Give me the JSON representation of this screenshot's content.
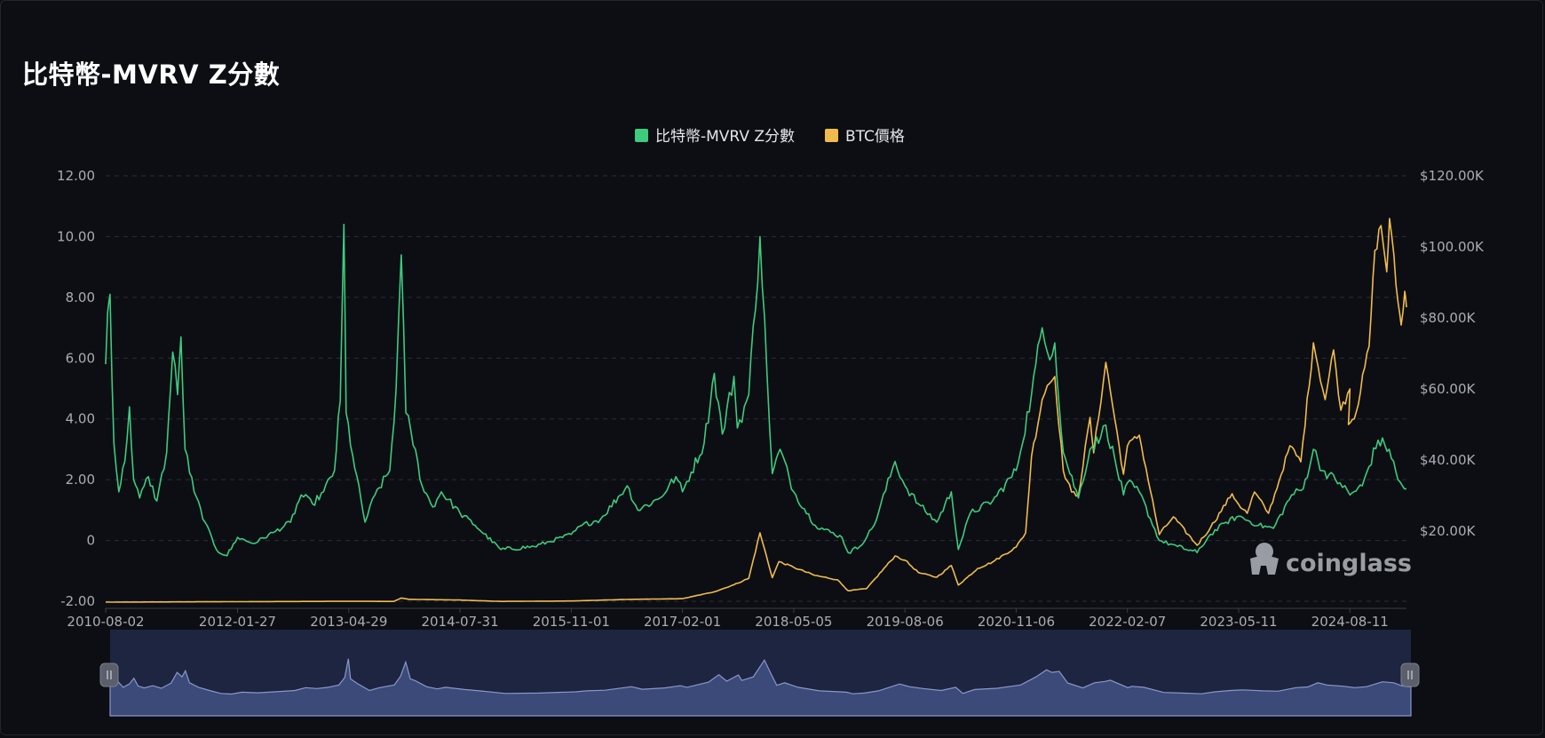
{
  "title": "比特幣-MVRV Z分數",
  "watermark": "coinglass",
  "legend": [
    {
      "label": "比特幣-MVRV Z分數",
      "color": "#3ecb7e"
    },
    {
      "label": "BTC價格",
      "color": "#f0bb4d"
    }
  ],
  "chart_data": {
    "type": "line",
    "title": "比特幣-MVRV Z分數",
    "x_labels": [
      "2010-08-02",
      "2012-01-27",
      "2013-04-29",
      "2014-07-31",
      "2015-11-01",
      "2017-02-01",
      "2018-05-05",
      "2019-08-06",
      "2020-11-06",
      "2022-02-07",
      "2023-05-11",
      "2024-08-11"
    ],
    "x_range": [
      "2010-08-02",
      "2025-04-01"
    ],
    "y_left": {
      "ticks": [
        "12.00",
        "10.00",
        "8.00",
        "6.00",
        "4.00",
        "2.00",
        "0",
        "-2.00"
      ],
      "range": [
        -2,
        12
      ]
    },
    "y_right": {
      "ticks": [
        "$120.00K",
        "$100.00K",
        "$80.00K",
        "$60.00K",
        "$40.00K",
        "$20.00K"
      ],
      "range": [
        0,
        120000
      ]
    },
    "grid": true,
    "legend_position": "top-center",
    "series": [
      {
        "name": "比特幣-MVRV Z分數",
        "axis": "left",
        "color": "#3ecb7e",
        "points": [
          [
            "2010-08-02",
            5.8
          ],
          [
            "2010-08-10",
            7.5
          ],
          [
            "2010-08-20",
            8.1
          ],
          [
            "2010-09-05",
            3.2
          ],
          [
            "2010-09-25",
            1.6
          ],
          [
            "2010-10-20",
            2.6
          ],
          [
            "2010-11-08",
            4.4
          ],
          [
            "2010-11-25",
            2.0
          ],
          [
            "2010-12-20",
            1.4
          ],
          [
            "2011-01-25",
            2.1
          ],
          [
            "2011-03-01",
            1.3
          ],
          [
            "2011-04-10",
            2.9
          ],
          [
            "2011-05-05",
            6.2
          ],
          [
            "2011-05-25",
            4.8
          ],
          [
            "2011-06-08",
            6.7
          ],
          [
            "2011-06-25",
            3.0
          ],
          [
            "2011-08-01",
            1.6
          ],
          [
            "2011-09-15",
            0.6
          ],
          [
            "2011-11-01",
            -0.3
          ],
          [
            "2011-12-15",
            -0.5
          ],
          [
            "2012-01-27",
            0.1
          ],
          [
            "2012-04-01",
            -0.1
          ],
          [
            "2012-07-01",
            0.3
          ],
          [
            "2012-09-01",
            0.6
          ],
          [
            "2012-10-15",
            1.5
          ],
          [
            "2012-12-01",
            1.2
          ],
          [
            "2013-01-15",
            1.6
          ],
          [
            "2013-03-01",
            2.3
          ],
          [
            "2013-03-25",
            4.6
          ],
          [
            "2013-04-09",
            10.4
          ],
          [
            "2013-04-18",
            4.2
          ],
          [
            "2013-05-15",
            2.8
          ],
          [
            "2013-07-05",
            0.6
          ],
          [
            "2013-08-15",
            1.5
          ],
          [
            "2013-10-15",
            2.3
          ],
          [
            "2013-11-10",
            5.0
          ],
          [
            "2013-12-01",
            9.4
          ],
          [
            "2013-12-20",
            4.2
          ],
          [
            "2014-01-10",
            3.6
          ],
          [
            "2014-02-25",
            1.8
          ],
          [
            "2014-04-10",
            1.1
          ],
          [
            "2014-05-15",
            1.6
          ],
          [
            "2014-07-31",
            0.9
          ],
          [
            "2014-10-01",
            0.5
          ],
          [
            "2015-01-15",
            -0.3
          ],
          [
            "2015-06-01",
            -0.2
          ],
          [
            "2015-11-01",
            0.2
          ],
          [
            "2015-12-15",
            0.5
          ],
          [
            "2016-03-01",
            0.7
          ],
          [
            "2016-06-18",
            1.8
          ],
          [
            "2016-08-01",
            1.0
          ],
          [
            "2016-11-01",
            1.4
          ],
          [
            "2017-01-05",
            2.1
          ],
          [
            "2017-02-01",
            1.6
          ],
          [
            "2017-05-01",
            3.2
          ],
          [
            "2017-06-12",
            5.5
          ],
          [
            "2017-07-15",
            3.5
          ],
          [
            "2017-09-01",
            5.4
          ],
          [
            "2017-09-15",
            3.7
          ],
          [
            "2017-11-01",
            4.8
          ],
          [
            "2017-12-17",
            10.0
          ],
          [
            "2018-01-15",
            5.5
          ],
          [
            "2018-02-06",
            2.2
          ],
          [
            "2018-03-10",
            3.0
          ],
          [
            "2018-05-05",
            1.6
          ],
          [
            "2018-08-01",
            0.5
          ],
          [
            "2018-11-20",
            0.1
          ],
          [
            "2018-12-15",
            -0.4
          ],
          [
            "2019-02-01",
            -0.2
          ],
          [
            "2019-04-01",
            0.5
          ],
          [
            "2019-06-26",
            2.6
          ],
          [
            "2019-08-06",
            1.8
          ],
          [
            "2019-10-01",
            1.2
          ],
          [
            "2019-12-15",
            0.6
          ],
          [
            "2020-02-13",
            1.6
          ],
          [
            "2020-03-13",
            -0.3
          ],
          [
            "2020-05-01",
            0.9
          ],
          [
            "2020-08-01",
            1.3
          ],
          [
            "2020-11-06",
            2.3
          ],
          [
            "2021-01-08",
            4.8
          ],
          [
            "2021-02-21",
            7.0
          ],
          [
            "2021-03-14",
            6.2
          ],
          [
            "2021-04-14",
            6.5
          ],
          [
            "2021-05-19",
            2.9
          ],
          [
            "2021-07-20",
            1.4
          ],
          [
            "2021-09-06",
            3.0
          ],
          [
            "2021-10-20",
            3.4
          ],
          [
            "2021-11-10",
            3.8
          ],
          [
            "2022-01-22",
            1.5
          ],
          [
            "2022-02-07",
            1.9
          ],
          [
            "2022-03-28",
            1.6
          ],
          [
            "2022-06-18",
            0.0
          ],
          [
            "2022-09-01",
            -0.2
          ],
          [
            "2022-11-21",
            -0.4
          ],
          [
            "2023-01-15",
            0.2
          ],
          [
            "2023-03-20",
            0.6
          ],
          [
            "2023-05-11",
            0.8
          ],
          [
            "2023-08-01",
            0.5
          ],
          [
            "2023-10-01",
            0.4
          ],
          [
            "2023-12-15",
            1.5
          ],
          [
            "2024-02-01",
            1.7
          ],
          [
            "2024-03-14",
            3.0
          ],
          [
            "2024-04-20",
            2.3
          ],
          [
            "2024-07-01",
            1.9
          ],
          [
            "2024-08-11",
            1.5
          ],
          [
            "2024-10-01",
            1.8
          ],
          [
            "2024-12-05",
            3.3
          ],
          [
            "2025-01-20",
            3.0
          ],
          [
            "2025-02-25",
            2.0
          ],
          [
            "2025-03-15",
            1.8
          ],
          [
            "2025-04-01",
            1.7
          ]
        ]
      },
      {
        "name": "BTC價格",
        "axis": "right",
        "color": "#f0bb4d",
        "points": [
          [
            "2010-08-02",
            0
          ],
          [
            "2013-04-09",
            230
          ],
          [
            "2013-11-01",
            200
          ],
          [
            "2013-12-01",
            1150
          ],
          [
            "2014-01-01",
            800
          ],
          [
            "2014-07-31",
            590
          ],
          [
            "2015-01-15",
            200
          ],
          [
            "2015-11-01",
            320
          ],
          [
            "2016-06-18",
            760
          ],
          [
            "2017-02-01",
            970
          ],
          [
            "2017-06-12",
            2900
          ],
          [
            "2017-09-01",
            4900
          ],
          [
            "2017-11-01",
            6700
          ],
          [
            "2017-12-17",
            19500
          ],
          [
            "2018-02-06",
            6900
          ],
          [
            "2018-03-05",
            11400
          ],
          [
            "2018-05-05",
            9800
          ],
          [
            "2018-08-01",
            7500
          ],
          [
            "2018-11-01",
            6300
          ],
          [
            "2018-12-15",
            3200
          ],
          [
            "2019-03-01",
            3800
          ],
          [
            "2019-06-26",
            13000
          ],
          [
            "2019-08-06",
            11800
          ],
          [
            "2019-10-01",
            8300
          ],
          [
            "2019-12-15",
            7000
          ],
          [
            "2020-02-13",
            10300
          ],
          [
            "2020-03-13",
            4800
          ],
          [
            "2020-06-01",
            9500
          ],
          [
            "2020-08-01",
            11300
          ],
          [
            "2020-11-06",
            15500
          ],
          [
            "2020-12-15",
            19500
          ],
          [
            "2021-01-08",
            41000
          ],
          [
            "2021-02-21",
            57000
          ],
          [
            "2021-03-14",
            61000
          ],
          [
            "2021-04-14",
            63500
          ],
          [
            "2021-05-19",
            37000
          ],
          [
            "2021-06-22",
            31000
          ],
          [
            "2021-07-20",
            30000
          ],
          [
            "2021-09-06",
            52000
          ],
          [
            "2021-09-21",
            42000
          ],
          [
            "2021-11-10",
            67500
          ],
          [
            "2022-01-22",
            36000
          ],
          [
            "2022-02-07",
            44000
          ],
          [
            "2022-03-28",
            47000
          ],
          [
            "2022-06-18",
            19000
          ],
          [
            "2022-08-15",
            24000
          ],
          [
            "2022-11-21",
            16000
          ],
          [
            "2023-01-15",
            21000
          ],
          [
            "2023-04-14",
            30500
          ],
          [
            "2023-05-11",
            27500
          ],
          [
            "2023-06-15",
            25000
          ],
          [
            "2023-07-15",
            31000
          ],
          [
            "2023-09-11",
            25000
          ],
          [
            "2023-10-24",
            34000
          ],
          [
            "2023-12-08",
            44000
          ],
          [
            "2024-01-22",
            39500
          ],
          [
            "2024-03-14",
            73000
          ],
          [
            "2024-05-01",
            57000
          ],
          [
            "2024-06-05",
            71000
          ],
          [
            "2024-07-05",
            54000
          ],
          [
            "2024-08-11",
            60000
          ],
          [
            "2024-08-05",
            50000
          ],
          [
            "2024-09-06",
            53500
          ],
          [
            "2024-10-29",
            72000
          ],
          [
            "2024-11-22",
            99000
          ],
          [
            "2024-12-17",
            106000
          ],
          [
            "2025-01-10",
            93000
          ],
          [
            "2025-01-21",
            108000
          ],
          [
            "2025-02-26",
            84000
          ],
          [
            "2025-03-10",
            78000
          ],
          [
            "2025-03-25",
            87500
          ],
          [
            "2025-04-01",
            83000
          ]
        ]
      }
    ]
  }
}
